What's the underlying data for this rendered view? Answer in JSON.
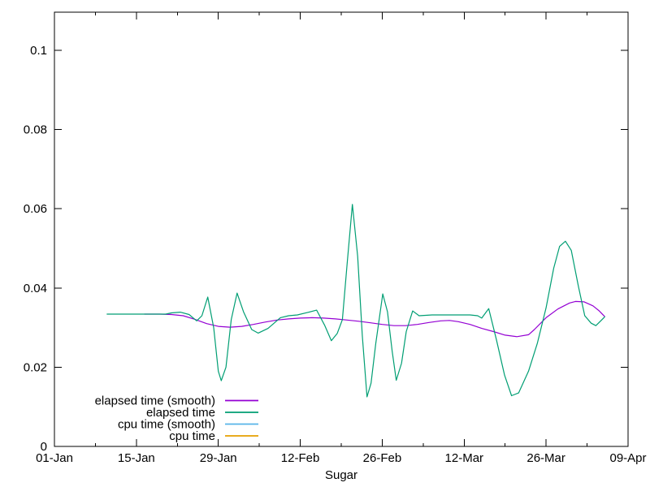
{
  "window": {
    "background": "#ffffff"
  },
  "colors": {
    "axis": "#000000",
    "text": "#000000",
    "elapsed_smooth": "#9400d3",
    "elapsed": "#009e73",
    "cpu_smooth": "#56b4e9",
    "cpu": "#e69f00"
  },
  "chart_data": {
    "type": "line",
    "title": "",
    "xlabel": "Sugar",
    "ylabel": "",
    "grid": false,
    "legend_position": "inside-bottom-left",
    "x_axis": {
      "unit": "date, days offset from 01-Jan",
      "range_days": [
        0,
        98
      ],
      "major_ticks": [
        {
          "day": 0,
          "label": "01-Jan"
        },
        {
          "day": 14,
          "label": "15-Jan"
        },
        {
          "day": 28,
          "label": "29-Jan"
        },
        {
          "day": 42,
          "label": "12-Feb"
        },
        {
          "day": 56,
          "label": "26-Feb"
        },
        {
          "day": 70,
          "label": "12-Mar"
        },
        {
          "day": 84,
          "label": "26-Mar"
        },
        {
          "day": 98,
          "label": "09-Apr"
        }
      ],
      "minor_tick_days": [
        7,
        21,
        35,
        49,
        63,
        77,
        91
      ]
    },
    "y_axis": {
      "range": [
        0,
        0.1096
      ],
      "ticks": [
        {
          "value": 0.0,
          "label": "0"
        },
        {
          "value": 0.02,
          "label": "0.02"
        },
        {
          "value": 0.04,
          "label": "0.04"
        },
        {
          "value": 0.06,
          "label": "0.06"
        },
        {
          "value": 0.08,
          "label": "0.08"
        },
        {
          "value": 0.1,
          "label": "0.1"
        }
      ]
    },
    "series": [
      {
        "name": "elapsed time (smooth)",
        "color": "#9400d3",
        "points": [
          [
            15.4,
            0.0334
          ],
          [
            18,
            0.0334
          ],
          [
            20,
            0.0333
          ],
          [
            22,
            0.033
          ],
          [
            24,
            0.0321
          ],
          [
            26,
            0.031
          ],
          [
            28,
            0.0303
          ],
          [
            30,
            0.0301
          ],
          [
            32,
            0.0303
          ],
          [
            34,
            0.0308
          ],
          [
            36,
            0.0314
          ],
          [
            38,
            0.0319
          ],
          [
            40,
            0.0322
          ],
          [
            42,
            0.0324
          ],
          [
            44,
            0.0325
          ],
          [
            46,
            0.0324
          ],
          [
            48,
            0.0322
          ],
          [
            50,
            0.0319
          ],
          [
            52,
            0.0316
          ],
          [
            54,
            0.0312
          ],
          [
            56,
            0.0308
          ],
          [
            58,
            0.0305
          ],
          [
            60,
            0.0305
          ],
          [
            62,
            0.0308
          ],
          [
            64,
            0.0313
          ],
          [
            66,
            0.0317
          ],
          [
            67.5,
            0.0318
          ],
          [
            69,
            0.0315
          ],
          [
            71,
            0.0308
          ],
          [
            73,
            0.0298
          ],
          [
            75,
            0.029
          ],
          [
            77,
            0.0281
          ],
          [
            79,
            0.0277
          ],
          [
            81,
            0.0282
          ],
          [
            82,
            0.0295
          ],
          [
            84,
            0.0325
          ],
          [
            86,
            0.0347
          ],
          [
            88,
            0.0362
          ],
          [
            89,
            0.0366
          ],
          [
            90.5,
            0.0365
          ],
          [
            92,
            0.0355
          ],
          [
            93,
            0.0343
          ],
          [
            94,
            0.0328
          ]
        ]
      },
      {
        "name": "elapsed time",
        "color": "#009e73",
        "points": [
          [
            9,
            0.0334
          ],
          [
            19,
            0.0334
          ],
          [
            20,
            0.0337
          ],
          [
            21.5,
            0.0339
          ],
          [
            23,
            0.0333
          ],
          [
            24.3,
            0.0317
          ],
          [
            25.2,
            0.033
          ],
          [
            26.2,
            0.0377
          ],
          [
            27.2,
            0.03
          ],
          [
            28,
            0.019
          ],
          [
            28.5,
            0.0166
          ],
          [
            29.3,
            0.02
          ],
          [
            30.2,
            0.032
          ],
          [
            31.2,
            0.0387
          ],
          [
            32.3,
            0.034
          ],
          [
            33.7,
            0.0295
          ],
          [
            34.8,
            0.0286
          ],
          [
            36.5,
            0.0298
          ],
          [
            38.6,
            0.0325
          ],
          [
            40,
            0.033
          ],
          [
            41.5,
            0.0332
          ],
          [
            43.2,
            0.0338
          ],
          [
            44.8,
            0.0344
          ],
          [
            46.2,
            0.0305
          ],
          [
            47.3,
            0.0267
          ],
          [
            48.3,
            0.0285
          ],
          [
            49.2,
            0.032
          ],
          [
            50,
            0.046
          ],
          [
            50.9,
            0.0611
          ],
          [
            51.8,
            0.048
          ],
          [
            52.6,
            0.028
          ],
          [
            53.4,
            0.0125
          ],
          [
            54.1,
            0.016
          ],
          [
            54.9,
            0.026
          ],
          [
            56.1,
            0.0385
          ],
          [
            56.9,
            0.034
          ],
          [
            57.7,
            0.024
          ],
          [
            58.4,
            0.0167
          ],
          [
            59.3,
            0.021
          ],
          [
            60.1,
            0.029
          ],
          [
            61.2,
            0.0342
          ],
          [
            62.3,
            0.033
          ],
          [
            64.5,
            0.0332
          ],
          [
            68,
            0.0332
          ],
          [
            71,
            0.0332
          ],
          [
            72.3,
            0.033
          ],
          [
            73,
            0.0324
          ],
          [
            74.2,
            0.0348
          ],
          [
            75.5,
            0.027
          ],
          [
            76.9,
            0.018
          ],
          [
            78.1,
            0.0128
          ],
          [
            79.3,
            0.0135
          ],
          [
            81,
            0.019
          ],
          [
            82.5,
            0.026
          ],
          [
            84,
            0.035
          ],
          [
            85.3,
            0.045
          ],
          [
            86.3,
            0.0505
          ],
          [
            87.3,
            0.0518
          ],
          [
            88.3,
            0.0495
          ],
          [
            89.5,
            0.0405
          ],
          [
            90.6,
            0.033
          ],
          [
            91.7,
            0.0311
          ],
          [
            92.5,
            0.0305
          ],
          [
            93.4,
            0.0318
          ],
          [
            94,
            0.0327
          ]
        ]
      },
      {
        "name": "cpu time (smooth)",
        "color": "#56b4e9",
        "points": []
      },
      {
        "name": "cpu time",
        "color": "#e69f00",
        "points": []
      }
    ]
  }
}
